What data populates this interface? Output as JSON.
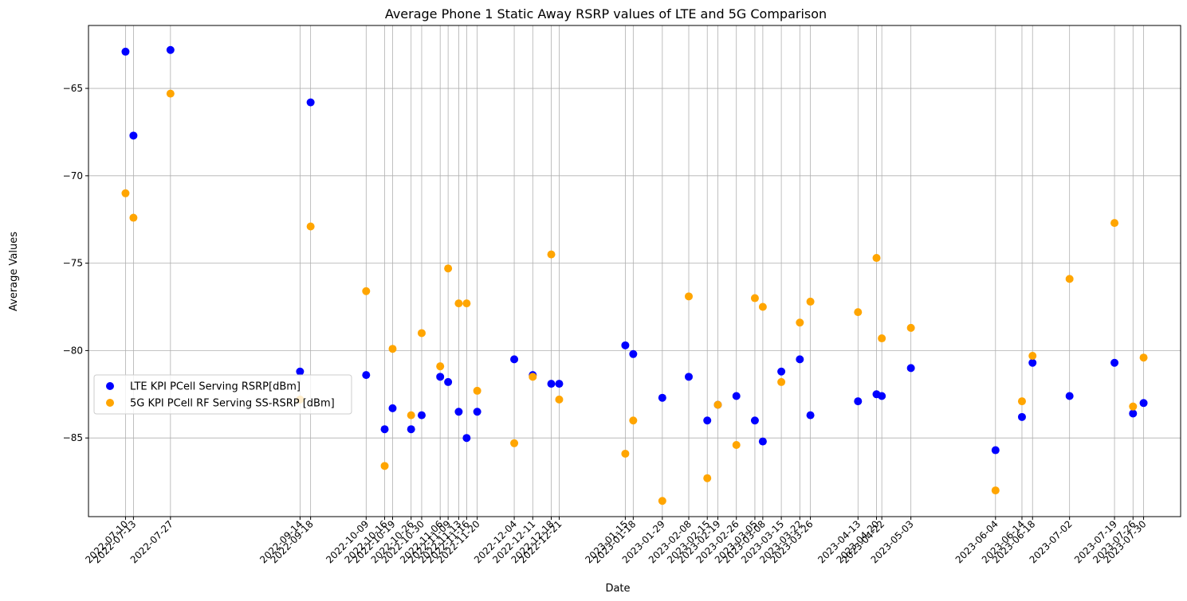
{
  "chart_data": {
    "type": "scatter",
    "title": "Average Phone 1 Static Away RSRP values of LTE and 5G Comparison",
    "xlabel": "Date",
    "ylabel": "Average Values",
    "ylim": [
      -89.5,
      -61.4
    ],
    "yticks": [
      -65,
      -70,
      -75,
      -80,
      -85
    ],
    "xlim": [
      "2022-06-26",
      "2023-08-13"
    ],
    "grid": true,
    "legend_position": "center-left",
    "x": [
      "2022-07-10",
      "2022-07-13",
      "2022-07-27",
      "2022-09-14",
      "2022-09-18",
      "2022-10-09",
      "2022-10-16",
      "2022-10-19",
      "2022-10-26",
      "2022-10-30",
      "2022-11-06",
      "2022-11-09",
      "2022-11-13",
      "2022-11-16",
      "2022-11-20",
      "2022-12-04",
      "2022-12-11",
      "2022-12-18",
      "2022-12-21",
      "2023-01-15",
      "2023-01-18",
      "2023-01-29",
      "2023-02-08",
      "2023-02-15",
      "2023-02-19",
      "2023-02-26",
      "2023-03-05",
      "2023-03-08",
      "2023-03-15",
      "2023-03-22",
      "2023-03-26",
      "2023-04-13",
      "2023-04-20",
      "2023-04-22",
      "2023-05-03",
      "2023-06-04",
      "2023-06-14",
      "2023-06-18",
      "2023-07-02",
      "2023-07-19",
      "2023-07-26",
      "2023-07-30"
    ],
    "series": [
      {
        "name": "LTE KPI PCell Serving RSRP[dBm]",
        "color": "#0000ff",
        "values": [
          -62.9,
          -67.7,
          -62.8,
          -81.2,
          -65.8,
          -81.4,
          -84.5,
          -83.3,
          -84.5,
          -83.7,
          -81.5,
          -81.8,
          -83.5,
          -85.0,
          -83.5,
          -80.5,
          -81.4,
          -81.9,
          -81.9,
          -79.7,
          -80.2,
          -82.7,
          -81.5,
          -84.0,
          -83.1,
          -82.6,
          -84.0,
          -85.2,
          -81.2,
          -80.5,
          -83.7,
          -82.9,
          -82.5,
          -82.6,
          -81.0,
          -85.7,
          -83.8,
          -80.7,
          -82.6,
          -80.7,
          -83.6,
          -83.0
        ]
      },
      {
        "name": "5G KPI PCell RF Serving SS-RSRP [dBm]",
        "color": "#ffa500",
        "values": [
          -71.0,
          -72.4,
          -65.3,
          -82.8,
          -72.9,
          -76.6,
          -86.6,
          -79.9,
          -83.7,
          -79.0,
          -80.9,
          -75.3,
          -77.3,
          -77.3,
          -82.3,
          -85.3,
          -81.5,
          -74.5,
          -82.8,
          -85.9,
          -84.0,
          -88.6,
          -76.9,
          -87.3,
          -83.1,
          -85.4,
          -77.0,
          -77.5,
          -81.8,
          -78.4,
          -77.2,
          -77.8,
          -74.7,
          -79.3,
          -78.7,
          -88.0,
          -82.9,
          -80.3,
          -75.9,
          -72.7,
          -83.2,
          -80.4
        ]
      }
    ]
  }
}
